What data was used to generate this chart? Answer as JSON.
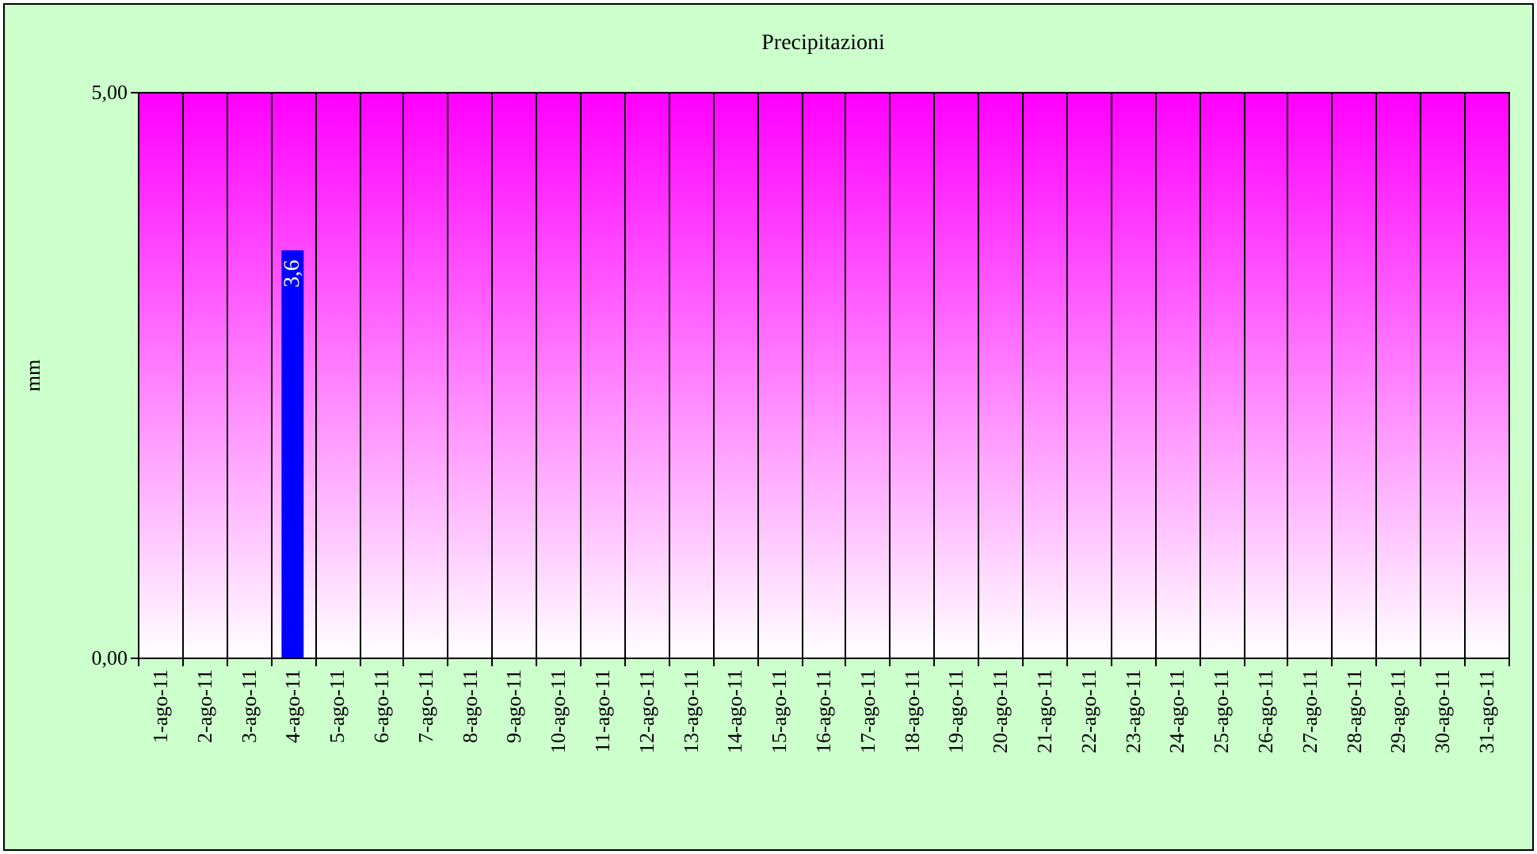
{
  "chart_data": {
    "type": "bar",
    "title": "Precipitazioni",
    "ylabel": "mm",
    "categories": [
      "1-ago-11",
      "2-ago-11",
      "3-ago-11",
      "4-ago-11",
      "5-ago-11",
      "6-ago-11",
      "7-ago-11",
      "8-ago-11",
      "9-ago-11",
      "10-ago-11",
      "11-ago-11",
      "12-ago-11",
      "13-ago-11",
      "14-ago-11",
      "15-ago-11",
      "16-ago-11",
      "17-ago-11",
      "18-ago-11",
      "19-ago-11",
      "20-ago-11",
      "21-ago-11",
      "22-ago-11",
      "23-ago-11",
      "24-ago-11",
      "25-ago-11",
      "26-ago-11",
      "27-ago-11",
      "28-ago-11",
      "29-ago-11",
      "30-ago-11",
      "31-ago-11"
    ],
    "values": [
      0,
      0,
      0,
      3.6,
      0,
      0,
      0,
      0,
      0,
      0,
      0,
      0,
      0,
      0,
      0,
      0,
      0,
      0,
      0,
      0,
      0,
      0,
      0,
      0,
      0,
      0,
      0,
      0,
      0,
      0,
      0
    ],
    "value_labels": [
      null,
      null,
      null,
      "3,6",
      null,
      null,
      null,
      null,
      null,
      null,
      null,
      null,
      null,
      null,
      null,
      null,
      null,
      null,
      null,
      null,
      null,
      null,
      null,
      null,
      null,
      null,
      null,
      null,
      null,
      null,
      null
    ],
    "color": "#0000ff",
    "ylim": [
      0,
      5
    ],
    "yticks": [
      {
        "value": 0,
        "label": "0,00"
      },
      {
        "value": 5,
        "label": "5,00"
      }
    ],
    "grid": "x",
    "legend": false
  }
}
